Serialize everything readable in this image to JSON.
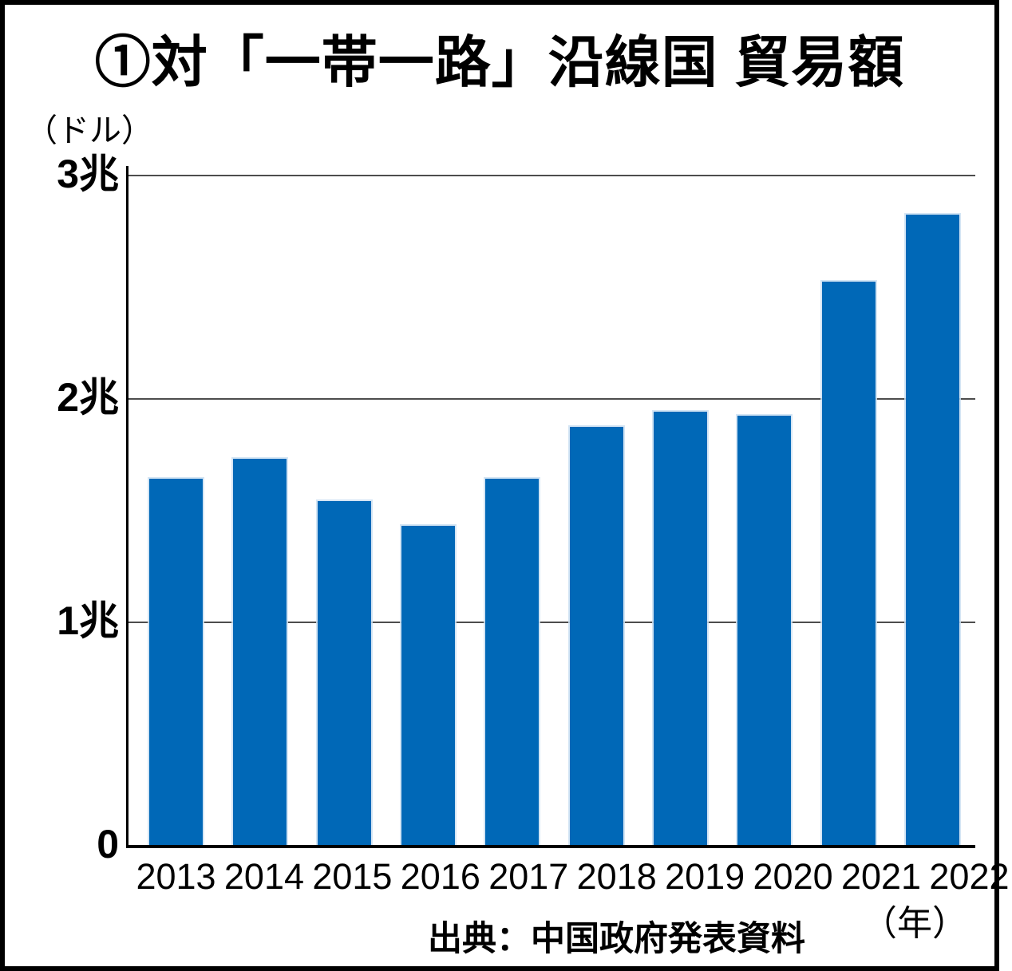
{
  "figure": {
    "title": "①対「一帯一路」沿線国 貿易額",
    "y_unit_label": "（ドル）",
    "x_unit_label": "（年）",
    "source": "出典：中国政府発表資料"
  },
  "chart_data": {
    "type": "bar",
    "title": "①対「一帯一路」沿線国 貿易額",
    "ylabel": "（ドル）",
    "xlabel": "（年）",
    "unit": "trillion USD (兆ドル)",
    "categories": [
      "2013",
      "2014",
      "2015",
      "2016",
      "2017",
      "2018",
      "2019",
      "2020",
      "2021",
      "2022"
    ],
    "values": [
      1.64,
      1.73,
      1.54,
      1.43,
      1.64,
      1.87,
      1.94,
      1.92,
      2.52,
      2.82
    ],
    "ylim": [
      0,
      3
    ],
    "yticks": [
      {
        "value": 0,
        "label": "0"
      },
      {
        "value": 1,
        "label": "1兆"
      },
      {
        "value": 2,
        "label": "2兆"
      },
      {
        "value": 3,
        "label": "3兆"
      }
    ],
    "grid": true,
    "legend": "none",
    "bar_color": "#0068b7",
    "source": "出典：中国政府発表資料"
  }
}
